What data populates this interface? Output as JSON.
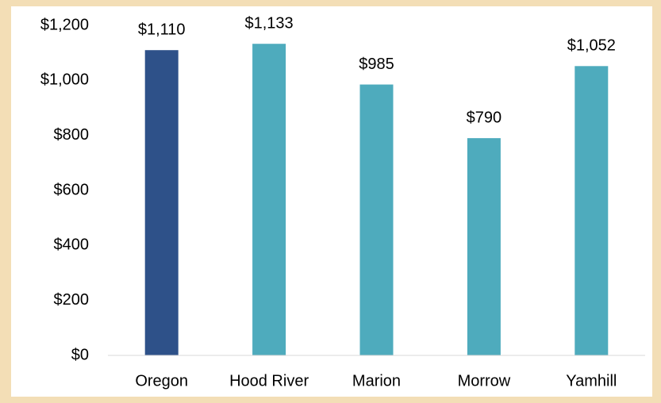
{
  "chart_data": {
    "type": "bar",
    "categories": [
      "Oregon",
      "Hood River",
      "Marion",
      "Morrow",
      "Yamhill"
    ],
    "values": [
      1110,
      1133,
      985,
      790,
      1052
    ],
    "value_labels": [
      "$1,110",
      "$1,133",
      "$985",
      "$790",
      "$1,052"
    ],
    "colors": [
      "#2e5189",
      "#4eabbd",
      "#4eabbd",
      "#4eabbd",
      "#4eabbd"
    ],
    "ylim": [
      0,
      1200
    ],
    "yticks": [
      {
        "value": 0,
        "label": "$0"
      },
      {
        "value": 200,
        "label": "$200"
      },
      {
        "value": 400,
        "label": "$400"
      },
      {
        "value": 600,
        "label": "$600"
      },
      {
        "value": 800,
        "label": "$800"
      },
      {
        "value": 1000,
        "label": "$1,000"
      },
      {
        "value": 1200,
        "label": "$1,200"
      }
    ],
    "grid": false
  }
}
